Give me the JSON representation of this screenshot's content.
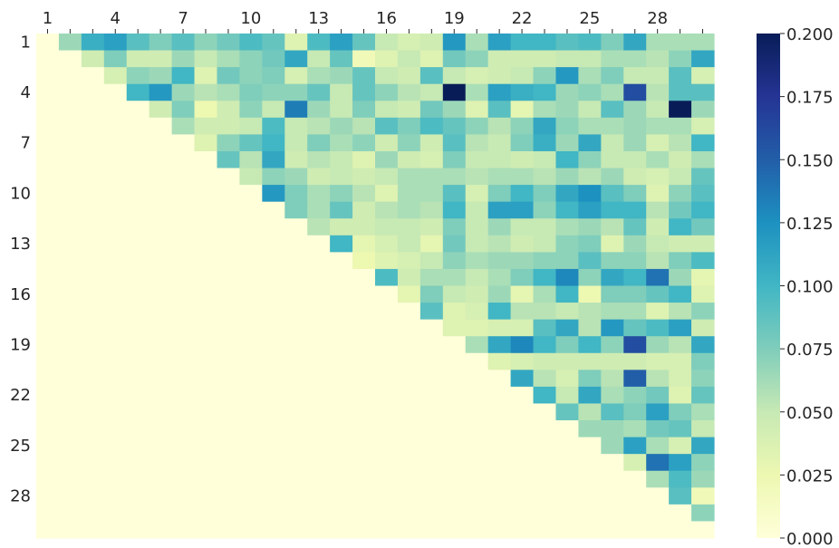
{
  "chart_data": {
    "type": "heatmap",
    "title": "",
    "xlabel": "",
    "ylabel": "",
    "n": 30,
    "mask": "lower-triangle-including-diagonal",
    "x_tick_labels": [
      "1",
      "4",
      "7",
      "10",
      "13",
      "16",
      "19",
      "22",
      "25",
      "28"
    ],
    "y_tick_labels": [
      "1",
      "4",
      "7",
      "10",
      "13",
      "16",
      "19",
      "22",
      "25",
      "28"
    ],
    "colorbar": {
      "min": 0.0,
      "max": 0.2,
      "ticks": [
        "0.000",
        "0.025",
        "0.050",
        "0.075",
        "0.100",
        "0.125",
        "0.150",
        "0.175",
        "0.200"
      ],
      "colormap": "YlGnBu",
      "colormap_stops": [
        "#ffffd9",
        "#edf8b1",
        "#c7e9b4",
        "#7fcdbb",
        "#41b6c4",
        "#1d91c0",
        "#225ea8",
        "#253494",
        "#081d58"
      ]
    },
    "matrix": [
      [
        0,
        0.065,
        0.105,
        0.115,
        0.09,
        0.075,
        0.09,
        0.07,
        0.08,
        0.095,
        0.085,
        0.035,
        0.095,
        0.115,
        0.085,
        0.05,
        0.04,
        0.045,
        0.12,
        0.06,
        0.115,
        0.1,
        0.1,
        0.09,
        0.095,
        0.075,
        0.11,
        0.06,
        0.06,
        0.06
      ],
      [
        0,
        0,
        0.045,
        0.075,
        0.045,
        0.045,
        0.065,
        0.05,
        0.06,
        0.07,
        0.08,
        0.11,
        0.05,
        0.085,
        0.02,
        0.035,
        0.05,
        0.035,
        0.08,
        0.07,
        0.045,
        0.045,
        0.045,
        0.05,
        0.05,
        0.06,
        0.06,
        0.055,
        0.07,
        0.11
      ],
      [
        0,
        0,
        0,
        0.04,
        0.07,
        0.065,
        0.1,
        0.035,
        0.08,
        0.07,
        0.075,
        0.04,
        0.06,
        0.065,
        0.085,
        0.05,
        0.045,
        0.09,
        0.05,
        0.04,
        0.045,
        0.05,
        0.07,
        0.12,
        0.06,
        0.075,
        0.05,
        0.05,
        0.09,
        0.04
      ],
      [
        0,
        0,
        0,
        0,
        0.1,
        0.12,
        0.065,
        0.055,
        0.06,
        0.075,
        0.07,
        0.07,
        0.085,
        0.05,
        0.085,
        0.07,
        0.055,
        0.05,
        0.2,
        0.06,
        0.115,
        0.105,
        0.1,
        0.065,
        0.07,
        0.06,
        0.16,
        0.055,
        0.09,
        0.09
      ],
      [
        0,
        0,
        0,
        0,
        0,
        0.045,
        0.075,
        0.025,
        0.045,
        0.07,
        0.05,
        0.135,
        0.065,
        0.05,
        0.075,
        0.05,
        0.045,
        0.08,
        0.065,
        0.035,
        0.09,
        0.03,
        0.06,
        0.065,
        0.05,
        0.09,
        0.065,
        0.05,
        0.2,
        0.065
      ],
      [
        0,
        0,
        0,
        0,
        0,
        0,
        0.06,
        0.045,
        0.045,
        0.05,
        0.095,
        0.05,
        0.055,
        0.065,
        0.055,
        0.09,
        0.075,
        0.095,
        0.085,
        0.07,
        0.055,
        0.07,
        0.11,
        0.07,
        0.06,
        0.06,
        0.065,
        0.06,
        0.06,
        0.04
      ],
      [
        0,
        0,
        0,
        0,
        0,
        0,
        0,
        0.035,
        0.07,
        0.085,
        0.1,
        0.05,
        0.075,
        0.06,
        0.07,
        0.045,
        0.07,
        0.045,
        0.09,
        0.055,
        0.05,
        0.075,
        0.105,
        0.065,
        0.11,
        0.05,
        0.065,
        0.04,
        0.055,
        0.1
      ],
      [
        0,
        0,
        0,
        0,
        0,
        0,
        0,
        0,
        0.085,
        0.055,
        0.11,
        0.045,
        0.055,
        0.05,
        0.035,
        0.065,
        0.045,
        0.04,
        0.075,
        0.05,
        0.05,
        0.045,
        0.05,
        0.1,
        0.07,
        0.05,
        0.05,
        0.06,
        0.045,
        0.06
      ],
      [
        0,
        0,
        0,
        0,
        0,
        0,
        0,
        0,
        0,
        0.05,
        0.07,
        0.065,
        0.045,
        0.05,
        0.045,
        0.05,
        0.06,
        0.06,
        0.06,
        0.055,
        0.06,
        0.06,
        0.055,
        0.065,
        0.055,
        0.065,
        0.045,
        0.04,
        0.05,
        0.085
      ],
      [
        0,
        0,
        0,
        0,
        0,
        0,
        0,
        0,
        0,
        0,
        0.12,
        0.075,
        0.06,
        0.07,
        0.055,
        0.035,
        0.06,
        0.06,
        0.09,
        0.04,
        0.075,
        0.1,
        0.075,
        0.11,
        0.125,
        0.09,
        0.075,
        0.035,
        0.07,
        0.09
      ],
      [
        0,
        0,
        0,
        0,
        0,
        0,
        0,
        0,
        0,
        0,
        0,
        0.075,
        0.06,
        0.085,
        0.045,
        0.055,
        0.06,
        0.055,
        0.1,
        0.05,
        0.115,
        0.115,
        0.07,
        0.1,
        0.115,
        0.1,
        0.1,
        0.055,
        0.08,
        0.1
      ],
      [
        0,
        0,
        0,
        0,
        0,
        0,
        0,
        0,
        0,
        0,
        0,
        0,
        0.055,
        0.045,
        0.045,
        0.05,
        0.05,
        0.045,
        0.075,
        0.05,
        0.065,
        0.05,
        0.05,
        0.06,
        0.065,
        0.055,
        0.085,
        0.045,
        0.1,
        0.08
      ],
      [
        0,
        0,
        0,
        0,
        0,
        0,
        0,
        0,
        0,
        0,
        0,
        0,
        0,
        0.1,
        0.03,
        0.04,
        0.05,
        0.03,
        0.08,
        0.05,
        0.055,
        0.045,
        0.05,
        0.07,
        0.075,
        0.035,
        0.065,
        0.05,
        0.045,
        0.045
      ],
      [
        0,
        0,
        0,
        0,
        0,
        0,
        0,
        0,
        0,
        0,
        0,
        0,
        0,
        0,
        0.025,
        0.035,
        0.04,
        0.05,
        0.07,
        0.06,
        0.065,
        0.065,
        0.07,
        0.07,
        0.09,
        0.07,
        0.07,
        0.055,
        0.075,
        0.095
      ],
      [
        0,
        0,
        0,
        0,
        0,
        0,
        0,
        0,
        0,
        0,
        0,
        0,
        0,
        0,
        0,
        0.095,
        0.045,
        0.06,
        0.06,
        0.05,
        0.06,
        0.075,
        0.1,
        0.13,
        0.07,
        0.11,
        0.1,
        0.14,
        0.065,
        0.03
      ],
      [
        0,
        0,
        0,
        0,
        0,
        0,
        0,
        0,
        0,
        0,
        0,
        0,
        0,
        0,
        0,
        0,
        0.03,
        0.075,
        0.05,
        0.045,
        0.065,
        0.03,
        0.06,
        0.1,
        0.025,
        0.075,
        0.075,
        0.085,
        0.1,
        0.035
      ],
      [
        0,
        0,
        0,
        0,
        0,
        0,
        0,
        0,
        0,
        0,
        0,
        0,
        0,
        0,
        0,
        0,
        0,
        0.09,
        0.035,
        0.04,
        0.1,
        0.055,
        0.055,
        0.05,
        0.055,
        0.06,
        0.06,
        0.035,
        0.055,
        0.07
      ],
      [
        0,
        0,
        0,
        0,
        0,
        0,
        0,
        0,
        0,
        0,
        0,
        0,
        0,
        0,
        0,
        0,
        0,
        0,
        0.035,
        0.035,
        0.04,
        0.04,
        0.09,
        0.11,
        0.055,
        0.12,
        0.085,
        0.095,
        0.115,
        0.045
      ],
      [
        0,
        0,
        0,
        0,
        0,
        0,
        0,
        0,
        0,
        0,
        0,
        0,
        0,
        0,
        0,
        0,
        0,
        0,
        0,
        0.06,
        0.11,
        0.13,
        0.1,
        0.075,
        0.1,
        0.07,
        0.16,
        0.065,
        0.055,
        0.11
      ],
      [
        0,
        0,
        0,
        0,
        0,
        0,
        0,
        0,
        0,
        0,
        0,
        0,
        0,
        0,
        0,
        0,
        0,
        0,
        0,
        0,
        0.035,
        0.04,
        0.045,
        0.045,
        0.045,
        0.045,
        0.045,
        0.04,
        0.04,
        0.075
      ],
      [
        0,
        0,
        0,
        0,
        0,
        0,
        0,
        0,
        0,
        0,
        0,
        0,
        0,
        0,
        0,
        0,
        0,
        0,
        0,
        0,
        0,
        0.11,
        0.055,
        0.04,
        0.075,
        0.055,
        0.15,
        0.055,
        0.04,
        0.07
      ],
      [
        0,
        0,
        0,
        0,
        0,
        0,
        0,
        0,
        0,
        0,
        0,
        0,
        0,
        0,
        0,
        0,
        0,
        0,
        0,
        0,
        0,
        0,
        0.1,
        0.05,
        0.11,
        0.06,
        0.07,
        0.08,
        0.035,
        0.085
      ],
      [
        0,
        0,
        0,
        0,
        0,
        0,
        0,
        0,
        0,
        0,
        0,
        0,
        0,
        0,
        0,
        0,
        0,
        0,
        0,
        0,
        0,
        0,
        0,
        0.085,
        0.055,
        0.09,
        0.075,
        0.115,
        0.075,
        0.06
      ],
      [
        0,
        0,
        0,
        0,
        0,
        0,
        0,
        0,
        0,
        0,
        0,
        0,
        0,
        0,
        0,
        0,
        0,
        0,
        0,
        0,
        0,
        0,
        0,
        0,
        0.065,
        0.065,
        0.06,
        0.08,
        0.085,
        0.05
      ],
      [
        0,
        0,
        0,
        0,
        0,
        0,
        0,
        0,
        0,
        0,
        0,
        0,
        0,
        0,
        0,
        0,
        0,
        0,
        0,
        0,
        0,
        0,
        0,
        0,
        0,
        0.065,
        0.115,
        0.06,
        0.04,
        0.11
      ],
      [
        0,
        0,
        0,
        0,
        0,
        0,
        0,
        0,
        0,
        0,
        0,
        0,
        0,
        0,
        0,
        0,
        0,
        0,
        0,
        0,
        0,
        0,
        0,
        0,
        0,
        0,
        0.04,
        0.14,
        0.115,
        0.07
      ],
      [
        0,
        0,
        0,
        0,
        0,
        0,
        0,
        0,
        0,
        0,
        0,
        0,
        0,
        0,
        0,
        0,
        0,
        0,
        0,
        0,
        0,
        0,
        0,
        0,
        0,
        0,
        0,
        0.06,
        0.095,
        0.065
      ],
      [
        0,
        0,
        0,
        0,
        0,
        0,
        0,
        0,
        0,
        0,
        0,
        0,
        0,
        0,
        0,
        0,
        0,
        0,
        0,
        0,
        0,
        0,
        0,
        0,
        0,
        0,
        0,
        0,
        0.09,
        0.02
      ],
      [
        0,
        0,
        0,
        0,
        0,
        0,
        0,
        0,
        0,
        0,
        0,
        0,
        0,
        0,
        0,
        0,
        0,
        0,
        0,
        0,
        0,
        0,
        0,
        0,
        0,
        0,
        0,
        0,
        0,
        0.07
      ],
      [
        0,
        0,
        0,
        0,
        0,
        0,
        0,
        0,
        0,
        0,
        0,
        0,
        0,
        0,
        0,
        0,
        0,
        0,
        0,
        0,
        0,
        0,
        0,
        0,
        0,
        0,
        0,
        0,
        0,
        0
      ]
    ]
  }
}
